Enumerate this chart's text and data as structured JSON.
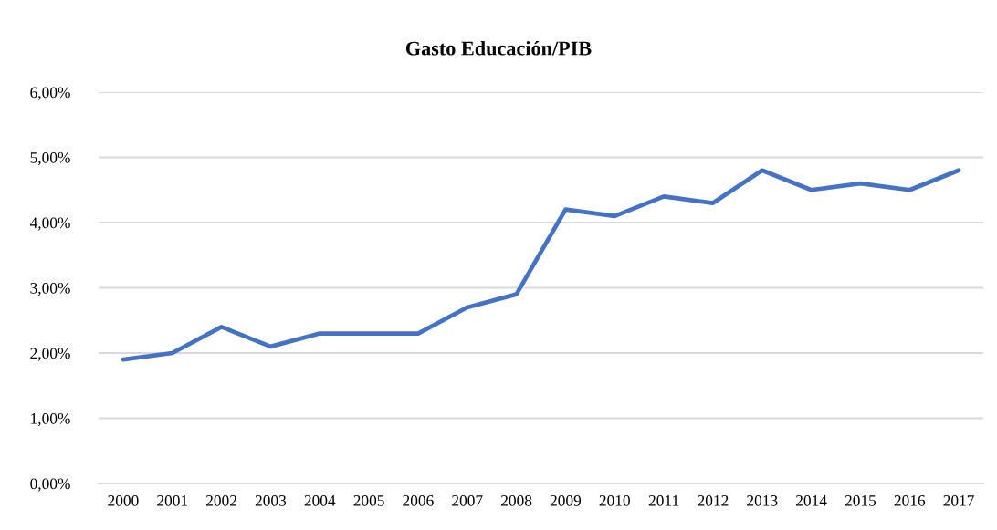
{
  "chart_data": {
    "type": "line",
    "title": "Gasto Educación/PIB",
    "categories": [
      "2000",
      "2001",
      "2002",
      "2003",
      "2004",
      "2005",
      "2006",
      "2007",
      "2008",
      "2009",
      "2010",
      "2011",
      "2012",
      "2013",
      "2014",
      "2015",
      "2016",
      "2017"
    ],
    "series": [
      {
        "color": "#4472c4",
        "values": [
          1.9,
          2.0,
          2.4,
          2.1,
          2.3,
          2.3,
          2.3,
          2.7,
          2.9,
          4.2,
          4.1,
          4.4,
          4.3,
          4.8,
          4.5,
          4.6,
          4.5,
          4.8
        ]
      }
    ],
    "ylim": [
      0,
      6
    ],
    "yticks": [
      {
        "value": 0,
        "label": "0,00%"
      },
      {
        "value": 1,
        "label": "1,00%"
      },
      {
        "value": 2,
        "label": "2,00%"
      },
      {
        "value": 3,
        "label": "3,00%"
      },
      {
        "value": 4,
        "label": "4,00%"
      },
      {
        "value": 5,
        "label": "5,00%"
      },
      {
        "value": 6,
        "label": "6,00%"
      }
    ],
    "grid": "y",
    "marker": "none",
    "line_style": "solid"
  }
}
